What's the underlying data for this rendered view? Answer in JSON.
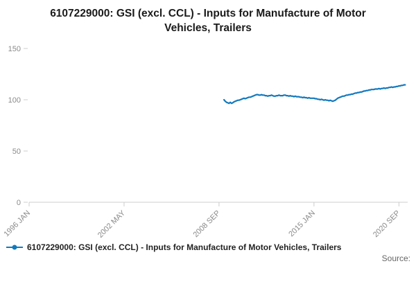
{
  "title": "6107229000: GSI (excl. CCL) - Inputs for Manufacture of Motor Vehicles, Trailers",
  "legend": {
    "label": "6107229000: GSI (excl. CCL) - Inputs for Manufacture of Motor Vehicles, Trailers"
  },
  "source_label": "Source:",
  "colors": {
    "line": "#1379bd",
    "axis": "#cccccc",
    "tick_text": "#8a8a8a",
    "title_text": "#1a1a1a"
  },
  "chart_data": {
    "type": "line",
    "title": "6107229000: GSI (excl. CCL) - Inputs for Manufacture of Motor Vehicles, Trailers",
    "xlabel": "",
    "ylabel": "",
    "ylim": [
      0,
      150
    ],
    "y_ticks": [
      0,
      50,
      100,
      150
    ],
    "x_ticks": [
      "1996 JAN",
      "2002 MAY",
      "2008 SEP",
      "2015 JAN",
      "2020 SEP"
    ],
    "x_start": "1996 JAN",
    "x_end": "2021 APR",
    "grid": false,
    "legend_position": "bottom-left",
    "series": [
      {
        "name": "6107229000: GSI (excl. CCL) - Inputs for Manufacture of Motor Vehicles, Trailers",
        "start": "2009 JAN",
        "frequency": "monthly",
        "values": [
          100.0,
          98.5,
          97.5,
          97.0,
          96.5,
          97.5,
          96.5,
          97.0,
          98.0,
          98.5,
          99.0,
          99.5,
          99.5,
          100.0,
          100.5,
          101.0,
          101.5,
          101.0,
          101.5,
          102.0,
          102.5,
          102.5,
          103.0,
          103.5,
          104.0,
          104.5,
          105.0,
          105.0,
          104.5,
          104.5,
          105.0,
          104.5,
          104.5,
          104.0,
          104.0,
          103.5,
          104.0,
          104.0,
          104.5,
          104.0,
          103.5,
          103.5,
          104.0,
          104.0,
          104.5,
          104.0,
          104.0,
          104.0,
          104.5,
          104.5,
          104.0,
          104.0,
          103.5,
          104.0,
          103.5,
          103.5,
          103.0,
          103.5,
          103.0,
          103.0,
          103.0,
          102.5,
          102.5,
          102.0,
          102.5,
          102.0,
          102.0,
          101.5,
          102.0,
          101.5,
          101.5,
          101.5,
          101.5,
          101.0,
          101.0,
          100.5,
          100.5,
          100.0,
          100.5,
          100.0,
          99.5,
          100.0,
          99.5,
          99.5,
          99.0,
          99.5,
          99.0,
          98.5,
          99.0,
          99.5,
          100.5,
          101.5,
          102.0,
          102.5,
          103.0,
          103.5,
          103.5,
          104.0,
          104.5,
          104.5,
          105.0,
          105.0,
          105.5,
          105.5,
          106.0,
          106.5,
          106.5,
          107.0,
          107.0,
          107.5,
          107.5,
          108.0,
          108.5,
          108.5,
          109.0,
          109.0,
          109.5,
          109.5,
          110.0,
          110.0,
          110.0,
          110.5,
          110.5,
          110.5,
          111.0,
          110.5,
          111.0,
          111.0,
          111.5,
          111.0,
          111.5,
          111.5,
          112.0,
          112.0,
          112.5,
          112.0,
          112.5,
          112.5,
          113.0,
          113.0,
          113.5,
          113.5,
          114.0,
          114.0,
          114.5,
          114.5
        ]
      }
    ]
  }
}
